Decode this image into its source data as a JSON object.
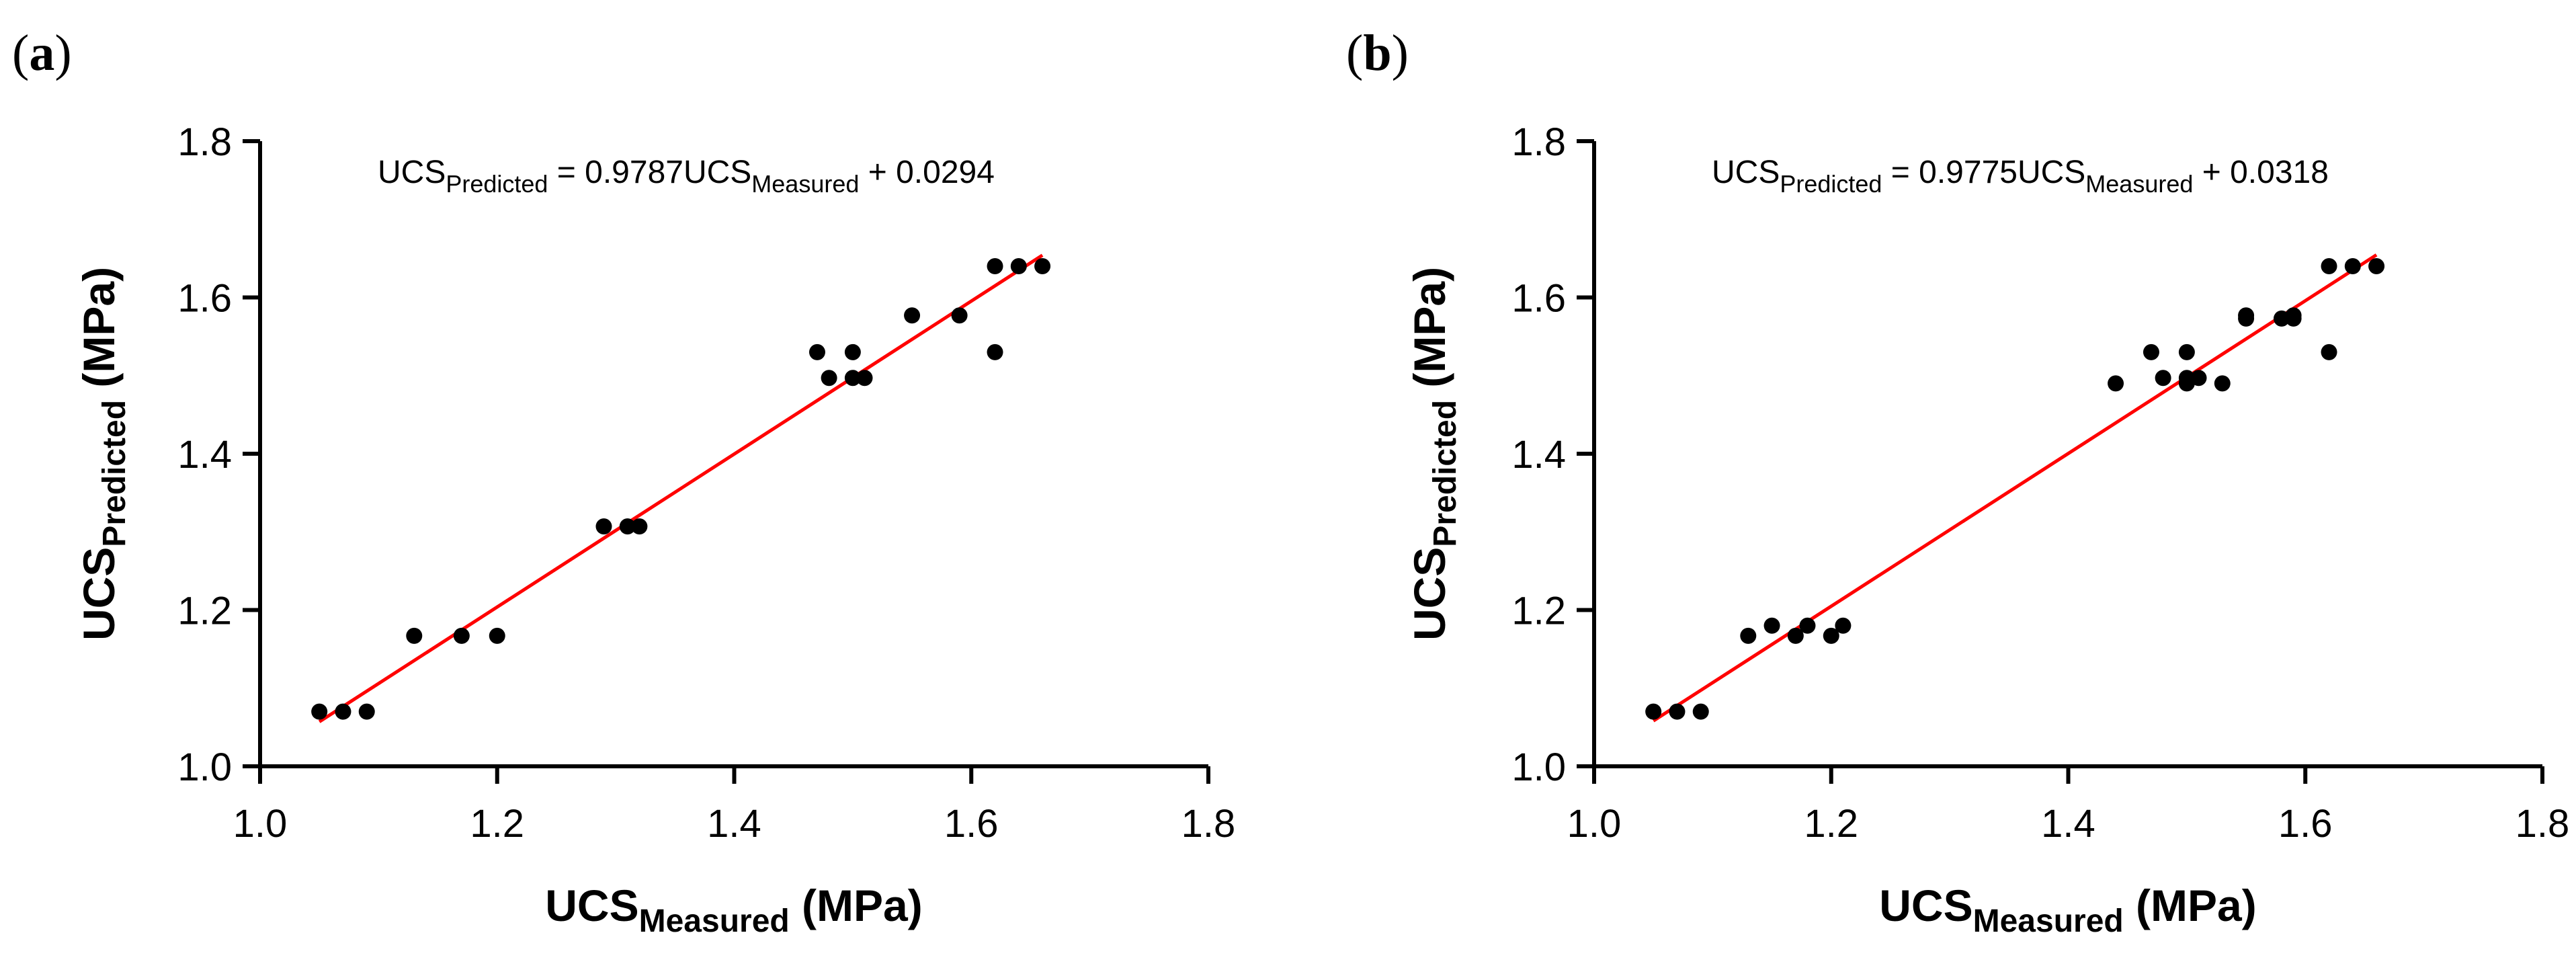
{
  "chart_data": [
    {
      "type": "scatter",
      "panel_label": "(a)",
      "panel_letter": "a",
      "equation": {
        "lhs_main": "UCS",
        "lhs_sub": "Predicted",
        "rhs_part1": " = 0.9787UCS",
        "rhs_sub": "Measured",
        "rhs_part2": " + 0.0294"
      },
      "xlabel": {
        "main": "UCS",
        "sub": "Measured",
        "unit": " (MPa)"
      },
      "ylabel": {
        "main": "UCS",
        "sub": "Predicted",
        "unit": " (MPa)"
      },
      "xlim": [
        1.0,
        1.8
      ],
      "ylim": [
        1.0,
        1.8
      ],
      "xticks": [
        "1.0",
        "1.2",
        "1.4",
        "1.6",
        "1.8"
      ],
      "yticks": [
        "1.0",
        "1.2",
        "1.4",
        "1.6",
        "1.8"
      ],
      "points": [
        [
          1.05,
          1.07
        ],
        [
          1.07,
          1.07
        ],
        [
          1.09,
          1.07
        ],
        [
          1.13,
          1.167
        ],
        [
          1.17,
          1.167
        ],
        [
          1.2,
          1.167
        ],
        [
          1.29,
          1.307
        ],
        [
          1.31,
          1.307
        ],
        [
          1.32,
          1.307
        ],
        [
          1.47,
          1.53
        ],
        [
          1.48,
          1.497
        ],
        [
          1.5,
          1.53
        ],
        [
          1.5,
          1.497
        ],
        [
          1.51,
          1.497
        ],
        [
          1.55,
          1.577
        ],
        [
          1.59,
          1.577
        ],
        [
          1.62,
          1.64
        ],
        [
          1.64,
          1.64
        ],
        [
          1.66,
          1.64
        ],
        [
          1.62,
          1.53
        ]
      ],
      "fit": {
        "slope": 0.9787,
        "intercept": 0.0294,
        "x_range": [
          1.05,
          1.66
        ],
        "color": "#ff0000"
      },
      "marker_color": "#000000"
    },
    {
      "type": "scatter",
      "panel_label": "(b)",
      "panel_letter": "b",
      "equation": {
        "lhs_main": "UCS",
        "lhs_sub": "Predicted",
        "rhs_part1": " = 0.9775UCS",
        "rhs_sub": "Measured",
        "rhs_part2": " + 0.0318"
      },
      "xlabel": {
        "main": "UCS",
        "sub": "Measured",
        "unit": " (MPa)"
      },
      "ylabel": {
        "main": "UCS",
        "sub": "Predicted",
        "unit": "  (MPa)"
      },
      "xlim": [
        1.0,
        1.8
      ],
      "ylim": [
        1.0,
        1.8
      ],
      "xticks": [
        "1.0",
        "1.2",
        "1.4",
        "1.6",
        "1.8"
      ],
      "yticks": [
        "1.0",
        "1.2",
        "1.4",
        "1.6",
        "1.8"
      ],
      "points": [
        [
          1.05,
          1.07
        ],
        [
          1.07,
          1.07
        ],
        [
          1.09,
          1.07
        ],
        [
          1.13,
          1.167
        ],
        [
          1.15,
          1.18
        ],
        [
          1.17,
          1.167
        ],
        [
          1.18,
          1.18
        ],
        [
          1.2,
          1.167
        ],
        [
          1.21,
          1.18
        ],
        [
          1.44,
          1.49
        ],
        [
          1.47,
          1.53
        ],
        [
          1.48,
          1.497
        ],
        [
          1.5,
          1.53
        ],
        [
          1.5,
          1.49
        ],
        [
          1.5,
          1.497
        ],
        [
          1.51,
          1.497
        ],
        [
          1.53,
          1.49
        ],
        [
          1.55,
          1.573
        ],
        [
          1.55,
          1.577
        ],
        [
          1.58,
          1.573
        ],
        [
          1.59,
          1.573
        ],
        [
          1.59,
          1.577
        ],
        [
          1.62,
          1.64
        ],
        [
          1.64,
          1.64
        ],
        [
          1.66,
          1.64
        ],
        [
          1.62,
          1.53
        ]
      ],
      "fit": {
        "slope": 0.9775,
        "intercept": 0.0318,
        "x_range": [
          1.05,
          1.66
        ],
        "color": "#ff0000"
      },
      "marker_color": "#000000"
    }
  ]
}
